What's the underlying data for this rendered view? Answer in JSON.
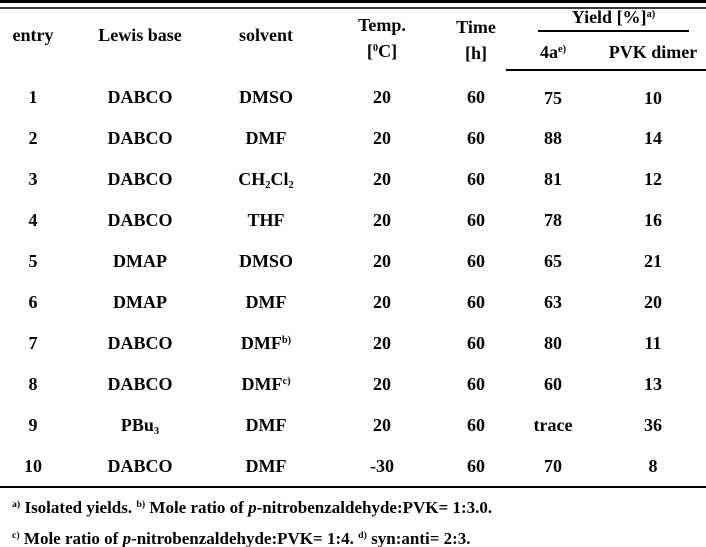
{
  "page": {
    "background": "#ffffff",
    "text_color": "#050505",
    "rule_color": "#000000"
  },
  "table": {
    "header": {
      "entry": "entry",
      "lewis_base": "Lewis base",
      "solvent": "solvent",
      "temp": {
        "line1": "Temp.",
        "line2": [
          {
            "text": "["
          },
          {
            "sup": "0"
          },
          {
            "text": "C]"
          }
        ]
      },
      "time": {
        "line1": "Time",
        "line2": "[h]"
      },
      "yield_group": [
        {
          "text": "Yield [%]"
        },
        {
          "sup": "a)"
        }
      ],
      "yield_sub_4a": [
        {
          "text": "4a"
        },
        {
          "sup": "e)"
        }
      ],
      "yield_sub_pvk": "PVK dimer"
    },
    "rows": [
      {
        "entry": "1",
        "lewis_base": [
          {
            "text": "DABCO"
          }
        ],
        "solvent": [
          {
            "text": "DMSO"
          }
        ],
        "temp": "20",
        "time": "60",
        "yield_4a": "75",
        "pvk_dimer": "10"
      },
      {
        "entry": "2",
        "lewis_base": [
          {
            "text": "DABCO"
          }
        ],
        "solvent": [
          {
            "text": "DMF"
          }
        ],
        "temp": "20",
        "time": "60",
        "yield_4a": "88",
        "pvk_dimer": "14"
      },
      {
        "entry": "3",
        "lewis_base": [
          {
            "text": "DABCO"
          }
        ],
        "solvent": [
          {
            "text": "CH"
          },
          {
            "sub": "2"
          },
          {
            "text": "Cl"
          },
          {
            "sub": "2"
          }
        ],
        "temp": "20",
        "time": "60",
        "yield_4a": "81",
        "pvk_dimer": "12"
      },
      {
        "entry": "4",
        "lewis_base": [
          {
            "text": "DABCO"
          }
        ],
        "solvent": [
          {
            "text": "THF"
          }
        ],
        "temp": "20",
        "time": "60",
        "yield_4a": "78",
        "pvk_dimer": "16"
      },
      {
        "entry": "5",
        "lewis_base": [
          {
            "text": "DMAP"
          }
        ],
        "solvent": [
          {
            "text": "DMSO"
          }
        ],
        "temp": "20",
        "time": "60",
        "yield_4a": "65",
        "pvk_dimer": "21"
      },
      {
        "entry": "6",
        "lewis_base": [
          {
            "text": "DMAP"
          }
        ],
        "solvent": [
          {
            "text": "DMF"
          }
        ],
        "temp": "20",
        "time": "60",
        "yield_4a": "63",
        "pvk_dimer": "20"
      },
      {
        "entry": "7",
        "lewis_base": [
          {
            "text": "DABCO"
          }
        ],
        "solvent": [
          {
            "text": "DMF"
          },
          {
            "sup": "b)"
          }
        ],
        "temp": "20",
        "time": "60",
        "yield_4a": "80",
        "pvk_dimer": "11"
      },
      {
        "entry": "8",
        "lewis_base": [
          {
            "text": "DABCO"
          }
        ],
        "solvent": [
          {
            "text": "DMF"
          },
          {
            "sup": "c)"
          }
        ],
        "temp": "20",
        "time": "60",
        "yield_4a": "60",
        "pvk_dimer": "13"
      },
      {
        "entry": "9",
        "lewis_base": [
          {
            "text": "PBu"
          },
          {
            "sub": "3"
          }
        ],
        "solvent": [
          {
            "text": "DMF"
          }
        ],
        "temp": "20",
        "time": "60",
        "yield_4a": "trace",
        "pvk_dimer": "36"
      },
      {
        "entry": "10",
        "lewis_base": [
          {
            "text": "DABCO"
          }
        ],
        "solvent": [
          {
            "text": "DMF"
          }
        ],
        "temp": "-30",
        "time": "60",
        "yield_4a": "70",
        "pvk_dimer": "8"
      }
    ],
    "footnotes": [
      [
        {
          "sup": "a)"
        },
        {
          "text": " Isolated yields. "
        },
        {
          "sup": "b)"
        },
        {
          "text": " Mole ratio of "
        },
        {
          "i": "p"
        },
        {
          "text": "-nitrobenzaldehyde:PVK= 1:3.0."
        }
      ],
      [
        {
          "sup": "c)"
        },
        {
          "text": " Mole ratio of "
        },
        {
          "i": "p"
        },
        {
          "text": "-nitrobenzaldehyde:PVK= 1:4. "
        },
        {
          "sup": "d)"
        },
        {
          "text": " syn:anti= 2:3."
        }
      ]
    ]
  }
}
